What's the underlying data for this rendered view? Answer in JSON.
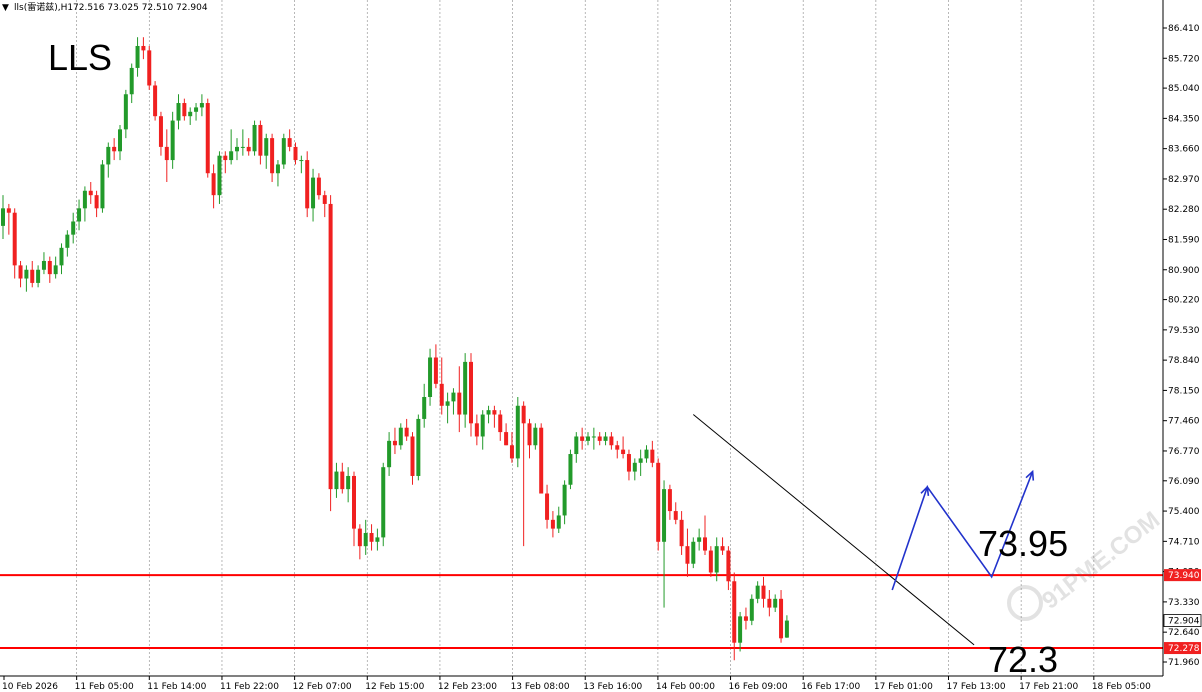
{
  "header": {
    "arrow": "▼",
    "symbol_label": "lls(雷诺兹),H1",
    "ohlc": "72.516 73.025 72.510 72.904"
  },
  "chart_title": "LLS",
  "colors": {
    "bull": "#229a2a",
    "bear": "#f02020",
    "level_line": "#ff0000",
    "trend_line": "#000000",
    "projection": "#2233cc",
    "grid": "#9a9a9a",
    "price_tag": "#f02020"
  },
  "annotations": {
    "upper_target": "73.95",
    "lower_target": "72.3"
  },
  "watermark": "91PME.COM",
  "chart_data": {
    "type": "candlestick",
    "timeframe": "H1",
    "ylim": [
      71.6,
      86.65
    ],
    "y_ticks": [
      "86.410",
      "85.720",
      "85.040",
      "84.350",
      "83.660",
      "82.970",
      "82.280",
      "81.590",
      "80.900",
      "80.220",
      "79.530",
      "78.840",
      "78.150",
      "77.460",
      "76.770",
      "76.090",
      "75.400",
      "74.710",
      "74.020",
      "73.330",
      "72.640",
      "71.960"
    ],
    "x_ticks": [
      "10 Feb 2026",
      "11 Feb 05:00",
      "11 Feb 14:00",
      "11 Feb 22:00",
      "12 Feb 07:00",
      "12 Feb 15:00",
      "12 Feb 23:00",
      "13 Feb 08:00",
      "13 Feb 16:00",
      "14 Feb 00:00",
      "16 Feb 09:00",
      "16 Feb 17:00",
      "17 Feb 01:00",
      "17 Feb 13:00",
      "17 Feb 21:00",
      "18 Feb 05:00"
    ],
    "candles": [
      [
        81.9,
        82.6,
        81.6,
        82.3
      ],
      [
        82.3,
        82.4,
        81.7,
        82.2
      ],
      [
        82.2,
        82.3,
        80.7,
        81.0
      ],
      [
        81.0,
        81.1,
        80.5,
        80.7
      ],
      [
        80.7,
        81.0,
        80.4,
        80.9
      ],
      [
        80.9,
        81.1,
        80.5,
        80.6
      ],
      [
        80.6,
        81.0,
        80.5,
        80.9
      ],
      [
        80.9,
        81.3,
        80.8,
        81.1
      ],
      [
        81.1,
        81.2,
        80.6,
        80.8
      ],
      [
        80.8,
        81.2,
        80.7,
        81.0
      ],
      [
        81.0,
        81.5,
        80.8,
        81.4
      ],
      [
        81.4,
        81.8,
        81.2,
        81.7
      ],
      [
        81.7,
        82.2,
        81.5,
        82.0
      ],
      [
        82.0,
        82.5,
        81.8,
        82.3
      ],
      [
        82.3,
        82.8,
        82.0,
        82.7
      ],
      [
        82.7,
        82.9,
        82.4,
        82.6
      ],
      [
        82.6,
        82.7,
        82.1,
        82.3
      ],
      [
        82.3,
        83.4,
        82.2,
        83.3
      ],
      [
        83.3,
        83.8,
        83.0,
        83.7
      ],
      [
        83.7,
        83.9,
        83.4,
        83.6
      ],
      [
        83.6,
        84.2,
        83.4,
        84.1
      ],
      [
        84.1,
        85.0,
        83.9,
        84.9
      ],
      [
        84.9,
        85.6,
        84.7,
        85.5
      ],
      [
        85.5,
        86.2,
        85.3,
        86.0
      ],
      [
        86.0,
        86.2,
        85.7,
        85.9
      ],
      [
        85.9,
        86.0,
        85.0,
        85.1
      ],
      [
        85.1,
        85.2,
        84.3,
        84.4
      ],
      [
        84.4,
        84.5,
        83.5,
        83.7
      ],
      [
        83.7,
        84.1,
        82.9,
        83.4
      ],
      [
        83.4,
        84.5,
        83.2,
        84.3
      ],
      [
        84.3,
        84.9,
        84.1,
        84.7
      ],
      [
        84.7,
        84.8,
        84.3,
        84.4
      ],
      [
        84.4,
        84.6,
        84.2,
        84.5
      ],
      [
        84.5,
        84.7,
        84.3,
        84.6
      ],
      [
        84.6,
        84.9,
        84.4,
        84.7
      ],
      [
        84.7,
        84.8,
        83.0,
        83.1
      ],
      [
        83.1,
        83.3,
        82.3,
        82.6
      ],
      [
        82.6,
        83.6,
        82.4,
        83.5
      ],
      [
        83.5,
        83.6,
        83.1,
        83.4
      ],
      [
        83.4,
        84.1,
        83.3,
        83.6
      ],
      [
        83.6,
        83.9,
        83.4,
        83.7
      ],
      [
        83.7,
        84.1,
        83.5,
        83.7
      ],
      [
        83.7,
        83.9,
        83.5,
        83.6
      ],
      [
        83.6,
        84.3,
        83.5,
        84.2
      ],
      [
        84.2,
        84.3,
        83.3,
        83.5
      ],
      [
        83.5,
        84.0,
        83.2,
        83.9
      ],
      [
        83.9,
        84.0,
        82.9,
        83.1
      ],
      [
        83.1,
        83.4,
        82.8,
        83.3
      ],
      [
        83.3,
        84.0,
        83.2,
        83.9
      ],
      [
        83.9,
        84.1,
        83.6,
        83.7
      ],
      [
        83.7,
        83.8,
        83.3,
        83.4
      ],
      [
        83.4,
        83.5,
        83.1,
        83.4
      ],
      [
        83.4,
        83.6,
        82.1,
        82.3
      ],
      [
        82.3,
        83.2,
        82.0,
        83.0
      ],
      [
        83.0,
        83.1,
        82.5,
        82.6
      ],
      [
        82.6,
        82.7,
        82.1,
        82.4
      ],
      [
        82.4,
        82.6,
        75.4,
        75.9
      ],
      [
        75.9,
        76.5,
        75.7,
        76.3
      ],
      [
        76.3,
        76.5,
        75.8,
        75.9
      ],
      [
        75.9,
        76.4,
        75.6,
        76.2
      ],
      [
        76.2,
        76.3,
        74.6,
        75.0
      ],
      [
        75.0,
        75.1,
        74.3,
        74.6
      ],
      [
        74.6,
        75.2,
        74.4,
        74.9
      ],
      [
        74.9,
        75.1,
        74.5,
        74.7
      ],
      [
        74.7,
        75.0,
        74.5,
        74.8
      ],
      [
        74.8,
        76.5,
        74.6,
        76.4
      ],
      [
        76.4,
        77.2,
        76.2,
        77.0
      ],
      [
        77.0,
        77.3,
        76.7,
        76.9
      ],
      [
        76.9,
        77.4,
        76.8,
        77.3
      ],
      [
        77.3,
        77.5,
        77.0,
        77.1
      ],
      [
        77.1,
        77.2,
        76.0,
        76.2
      ],
      [
        76.2,
        77.6,
        76.1,
        77.5
      ],
      [
        77.5,
        78.3,
        77.3,
        78.0
      ],
      [
        78.0,
        79.1,
        77.8,
        78.9
      ],
      [
        78.9,
        79.2,
        78.2,
        78.3
      ],
      [
        78.3,
        78.9,
        77.6,
        77.8
      ],
      [
        77.8,
        78.1,
        77.4,
        77.9
      ],
      [
        77.9,
        78.2,
        77.6,
        78.1
      ],
      [
        78.1,
        78.7,
        77.2,
        77.6
      ],
      [
        77.6,
        79.0,
        77.3,
        78.8
      ],
      [
        78.8,
        79.0,
        77.1,
        77.4
      ],
      [
        77.4,
        77.6,
        76.9,
        77.1
      ],
      [
        77.1,
        77.7,
        76.8,
        77.6
      ],
      [
        77.6,
        77.8,
        77.4,
        77.7
      ],
      [
        77.7,
        77.8,
        77.3,
        77.6
      ],
      [
        77.6,
        77.7,
        77.0,
        77.2
      ],
      [
        77.2,
        77.4,
        76.9,
        76.9
      ],
      [
        76.9,
        77.2,
        76.5,
        76.6
      ],
      [
        76.6,
        78.0,
        76.4,
        77.8
      ],
      [
        77.8,
        77.9,
        74.6,
        77.4
      ],
      [
        77.4,
        77.5,
        76.6,
        76.9
      ],
      [
        76.9,
        77.4,
        76.8,
        77.3
      ],
      [
        77.3,
        77.4,
        75.8,
        75.8
      ],
      [
        75.8,
        76.0,
        75.0,
        75.2
      ],
      [
        75.2,
        75.4,
        74.8,
        75.0
      ],
      [
        75.0,
        75.5,
        74.9,
        75.3
      ],
      [
        75.3,
        76.1,
        75.1,
        76.0
      ],
      [
        76.0,
        76.8,
        75.9,
        76.7
      ],
      [
        76.7,
        77.2,
        76.5,
        77.1
      ],
      [
        77.1,
        77.3,
        76.8,
        77.0
      ],
      [
        77.0,
        77.2,
        76.9,
        77.1
      ],
      [
        77.1,
        77.3,
        76.8,
        77.1
      ],
      [
        77.1,
        77.2,
        76.9,
        77.0
      ],
      [
        77.0,
        77.2,
        76.9,
        77.1
      ],
      [
        77.1,
        77.2,
        76.8,
        76.9
      ],
      [
        76.9,
        77.0,
        76.6,
        76.8
      ],
      [
        76.8,
        77.1,
        76.6,
        76.7
      ],
      [
        76.7,
        76.8,
        76.1,
        76.3
      ],
      [
        76.3,
        76.6,
        76.1,
        76.5
      ],
      [
        76.5,
        76.8,
        76.2,
        76.6
      ],
      [
        76.6,
        76.9,
        76.5,
        76.8
      ],
      [
        76.8,
        77.0,
        76.4,
        76.5
      ],
      [
        76.5,
        76.6,
        74.5,
        74.7
      ],
      [
        74.7,
        76.1,
        73.2,
        75.9
      ],
      [
        75.9,
        76.0,
        75.2,
        75.4
      ],
      [
        75.4,
        75.6,
        75.1,
        75.2
      ],
      [
        75.2,
        75.4,
        74.4,
        74.6
      ],
      [
        74.6,
        75.0,
        73.9,
        74.2
      ],
      [
        74.2,
        74.8,
        74.1,
        74.7
      ],
      [
        74.7,
        75.0,
        74.5,
        74.8
      ],
      [
        74.8,
        75.3,
        74.4,
        74.5
      ],
      [
        74.5,
        74.6,
        73.9,
        74.0
      ],
      [
        74.0,
        74.8,
        73.8,
        74.6
      ],
      [
        74.6,
        74.8,
        74.4,
        74.5
      ],
      [
        74.5,
        74.6,
        73.6,
        73.8
      ],
      [
        73.8,
        74.0,
        72.0,
        72.4
      ],
      [
        72.4,
        73.1,
        72.2,
        73.0
      ],
      [
        73.0,
        73.2,
        72.7,
        72.9
      ],
      [
        72.9,
        73.5,
        72.8,
        73.4
      ],
      [
        73.4,
        73.8,
        73.3,
        73.7
      ],
      [
        73.7,
        73.9,
        73.2,
        73.4
      ],
      [
        73.4,
        73.6,
        73.0,
        73.2
      ],
      [
        73.2,
        73.5,
        73.1,
        73.4
      ],
      [
        73.4,
        73.6,
        72.4,
        72.5
      ],
      [
        72.516,
        73.025,
        72.51,
        72.904
      ]
    ],
    "levels": [
      {
        "name": "resistance",
        "value": 73.94,
        "label": "73.940"
      },
      {
        "name": "support",
        "value": 72.278,
        "label": "72.278"
      }
    ],
    "current_price": {
      "value": 72.904,
      "label": "72.904"
    },
    "trend_line": {
      "from_index": 118,
      "from_price": 77.6,
      "to_index": 166,
      "to_price": 72.35
    },
    "projection_path": [
      {
        "index": 152,
        "price": 73.6
      },
      {
        "index": 158,
        "price": 75.95
      },
      {
        "index": 169,
        "price": 73.9
      },
      {
        "index": 176,
        "price": 76.3
      }
    ]
  }
}
